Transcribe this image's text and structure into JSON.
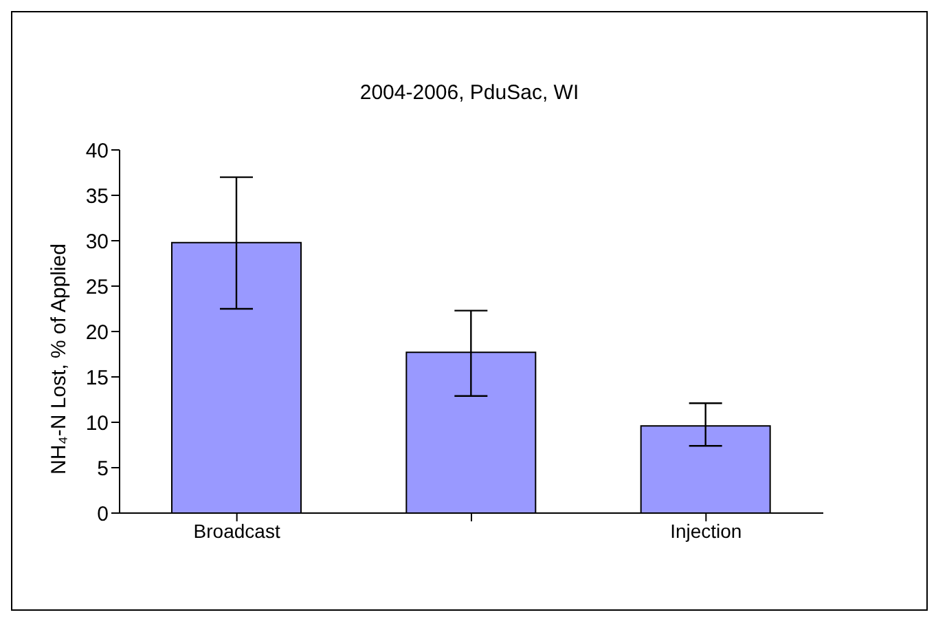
{
  "chart_data": {
    "type": "bar",
    "title": "2004-2006, PduSac, WI",
    "ylabel": "NH₄-N Lost, % of Applied",
    "categories": [
      "Broadcast",
      null,
      "Injection"
    ],
    "values": [
      29.8,
      17.7,
      9.6
    ],
    "errors": [
      [
        22.5,
        37
      ],
      [
        12.9,
        22.3
      ],
      [
        7.4,
        12.1
      ]
    ],
    "color": "#9999ff",
    "ylim": [
      0,
      40
    ],
    "yticks": [
      0,
      5,
      10,
      15,
      20,
      25,
      30,
      35,
      40
    ],
    "grid": false,
    "legend": false
  }
}
